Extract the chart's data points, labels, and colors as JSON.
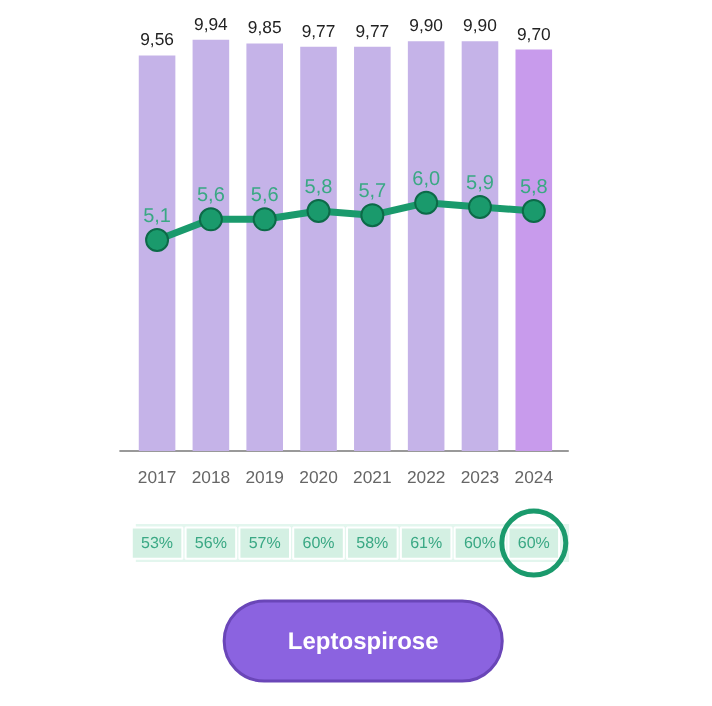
{
  "chart_data": {
    "type": "bar",
    "title": "Leptospirose",
    "categories": [
      "2017",
      "2018",
      "2019",
      "2020",
      "2021",
      "2022",
      "2023",
      "2024"
    ],
    "marker": "circle",
    "series": [
      {
        "values": [
          9.56,
          9.94,
          9.85,
          9.77,
          9.77,
          9.9,
          9.9,
          9.7
        ],
        "colors": [
          "#c5b3e8",
          "#c5b3e8",
          "#c5b3e8",
          "#c5b3e8",
          "#c5b3e8",
          "#c5b3e8",
          "#c5b3e8",
          "#c89bec"
        ],
        "value_labels": [
          "9,56",
          "9,94",
          "9,85",
          "9,77",
          "9,77",
          "9,90",
          "9,90",
          "9,70"
        ]
      },
      {
        "type": "line",
        "color": "#1a9a6c",
        "values": [
          5.1,
          5.6,
          5.6,
          5.8,
          5.7,
          6.0,
          5.9,
          5.8
        ],
        "value_labels": [
          "5,1",
          "5,6",
          "5,6",
          "5,8",
          "5,7",
          "6,0",
          "5,9",
          "5,8"
        ]
      }
    ],
    "annotations": [
      "53%",
      "56%",
      "57%",
      "60%",
      "58%",
      "61%",
      "60%",
      "60%"
    ]
  }
}
